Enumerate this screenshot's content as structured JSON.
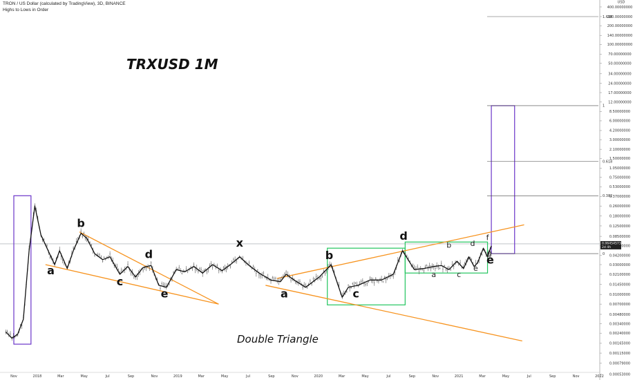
{
  "header": {
    "line1": "TRON / US Dollar (calculated by TradingView), 3D, BINANCE",
    "line2": "Highs to Lows in Order"
  },
  "annotations": {
    "title": "TRXUSD 1M",
    "note": "Double Triangle"
  },
  "chart_data": {
    "type": "line",
    "title": "TRXUSD 1M",
    "symbol": "TRON / US Dollar (calculated by TradingView), 3D, BINANCE",
    "scale": "log",
    "y_currency": "USD",
    "ylim": [
      0.0005,
      400
    ],
    "y_ticks": [
      "400.00000000",
      "280.00000000",
      "200.00000000",
      "140.00000000",
      "100.00000000",
      "70.00000000",
      "50.00000000",
      "34.00000000",
      "24.00000000",
      "17.00000000",
      "12.00000000",
      "8.50000000",
      "6.00000000",
      "4.20000000",
      "3.00000000",
      "2.10000000",
      "1.50000000",
      "1.05000000",
      "0.75000000",
      "0.53000000",
      "0.37000000",
      "0.26000000",
      "0.18000000",
      "0.12500000",
      "0.08500000",
      "0.06000000",
      "0.04200000",
      "0.03000000",
      "0.02100000",
      "0.01450000",
      "0.01000000",
      "0.00700000",
      "0.00480000",
      "0.00340000",
      "0.00240000",
      "0.00165000",
      "0.00115000",
      "0.00079000",
      "0.00053000",
      "0.00036000"
    ],
    "y_tick_values": [
      400,
      280,
      200,
      140,
      100,
      70,
      50,
      34,
      24,
      17,
      12,
      8.5,
      6,
      4.2,
      3,
      2.1,
      1.5,
      1.05,
      0.75,
      0.53,
      0.37,
      0.26,
      0.18,
      0.125,
      0.085,
      0.06,
      0.042,
      0.03,
      0.021,
      0.0145,
      0.01,
      0.007,
      0.0048,
      0.0034,
      0.0024,
      0.00165,
      0.00115,
      0.00079,
      0.00053,
      0.00036
    ],
    "x_ticks": [
      "Nov",
      "2018",
      "Mar",
      "May",
      "Jul",
      "Sep",
      "Nov",
      "2019",
      "Mar",
      "May",
      "Jul",
      "Sep",
      "Nov",
      "2020",
      "Mar",
      "May",
      "Jul",
      "Sep",
      "Nov",
      "2021",
      "Mar",
      "May",
      "Jul",
      "Sep",
      "Nov",
      "2022"
    ],
    "current_price": "0.06454573",
    "current_price_sub": "2d 4h",
    "fib_levels": [
      {
        "label": "1.618",
        "value": 280
      },
      {
        "label": "1",
        "value": 10.5
      },
      {
        "label": "0.618",
        "value": 1.35
      },
      {
        "label": "0.382",
        "value": 0.38
      },
      {
        "label": "0",
        "value": 0.045
      }
    ],
    "price_path": [
      [
        "2017-10-20",
        0.0025
      ],
      [
        "2017-11-05",
        0.002
      ],
      [
        "2017-11-20",
        0.0023
      ],
      [
        "2017-12-05",
        0.004
      ],
      [
        "2017-12-20",
        0.05
      ],
      [
        "2018-01-04",
        0.26
      ],
      [
        "2018-01-20",
        0.09
      ],
      [
        "2018-02-05",
        0.055
      ],
      [
        "2018-02-25",
        0.03
      ],
      [
        "2018-03-10",
        0.05
      ],
      [
        "2018-03-30",
        0.026
      ],
      [
        "2018-04-15",
        0.05
      ],
      [
        "2018-05-05",
        0.095
      ],
      [
        "2018-05-20",
        0.08
      ],
      [
        "2018-06-10",
        0.045
      ],
      [
        "2018-07-01",
        0.036
      ],
      [
        "2018-07-20",
        0.04
      ],
      [
        "2018-08-15",
        0.021
      ],
      [
        "2018-09-05",
        0.028
      ],
      [
        "2018-09-25",
        0.019
      ],
      [
        "2018-10-15",
        0.027
      ],
      [
        "2018-11-05",
        0.029
      ],
      [
        "2018-11-25",
        0.014
      ],
      [
        "2018-12-15",
        0.013
      ],
      [
        "2019-01-10",
        0.025
      ],
      [
        "2019-02-01",
        0.023
      ],
      [
        "2019-02-25",
        0.028
      ],
      [
        "2019-03-20",
        0.022
      ],
      [
        "2019-04-15",
        0.03
      ],
      [
        "2019-05-10",
        0.024
      ],
      [
        "2019-06-01",
        0.03
      ],
      [
        "2019-06-25",
        0.04
      ],
      [
        "2019-07-20",
        0.029
      ],
      [
        "2019-08-15",
        0.022
      ],
      [
        "2019-09-15",
        0.017
      ],
      [
        "2019-10-10",
        0.016
      ],
      [
        "2019-10-25",
        0.021
      ],
      [
        "2019-11-15",
        0.017
      ],
      [
        "2019-12-15",
        0.013
      ],
      [
        "2020-01-20",
        0.019
      ],
      [
        "2020-02-20",
        0.03
      ],
      [
        "2020-03-20",
        0.009
      ],
      [
        "2020-04-05",
        0.013
      ],
      [
        "2020-05-01",
        0.014
      ],
      [
        "2020-06-01",
        0.017
      ],
      [
        "2020-07-01",
        0.017
      ],
      [
        "2020-08-01",
        0.021
      ],
      [
        "2020-08-25",
        0.05
      ],
      [
        "2020-09-25",
        0.025
      ],
      [
        "2020-10-20",
        0.026
      ],
      [
        "2020-11-15",
        0.028
      ],
      [
        "2020-12-05",
        0.029
      ],
      [
        "2020-12-25",
        0.025
      ],
      [
        "2021-01-15",
        0.034
      ],
      [
        "2021-02-01",
        0.026
      ],
      [
        "2021-02-15",
        0.04
      ],
      [
        "2021-03-01",
        0.028
      ],
      [
        "2021-03-10",
        0.032
      ],
      [
        "2021-03-25",
        0.055
      ],
      [
        "2021-04-05",
        0.04
      ],
      [
        "2021-04-15",
        0.06
      ]
    ],
    "wave_labels": [
      {
        "text": "a",
        "date": "2018-02-15",
        "value": 0.021
      },
      {
        "text": "b",
        "date": "2018-05-05",
        "value": 0.12
      },
      {
        "text": "c",
        "date": "2018-08-15",
        "value": 0.014
      },
      {
        "text": "d",
        "date": "2018-10-30",
        "value": 0.038
      },
      {
        "text": "e",
        "date": "2018-12-10",
        "value": 0.009
      },
      {
        "text": "x",
        "date": "2019-06-25",
        "value": 0.058
      },
      {
        "text": "a",
        "date": "2019-10-20",
        "value": 0.009
      },
      {
        "text": "b",
        "date": "2020-02-15",
        "value": 0.037
      },
      {
        "text": "c",
        "date": "2020-04-25",
        "value": 0.009
      },
      {
        "text": "d",
        "date": "2020-08-28",
        "value": 0.075
      }
    ],
    "wave_labels_small": [
      {
        "text": "a",
        "date": "2020-11-15",
        "value": 0.019
      },
      {
        "text": "b",
        "date": "2020-12-25",
        "value": 0.056
      },
      {
        "text": "c",
        "date": "2021-01-20",
        "value": 0.019
      },
      {
        "text": "d",
        "date": "2021-02-25",
        "value": 0.06
      },
      {
        "text": "e",
        "date": "2021-03-05",
        "value": 0.024
      },
      {
        "text": "f",
        "date": "2021-04-05",
        "value": 0.074
      },
      {
        "text": "g",
        "date": "2021-04-10",
        "value": 0.042
      }
    ],
    "wave_label_e_final": {
      "text": "e",
      "date": "2021-04-12",
      "value": 0.031
    },
    "trendlines": [
      {
        "from": [
          "2018-05-01",
          0.1
        ],
        "to": [
          "2019-05-01",
          0.007
        ]
      },
      {
        "from": [
          "2018-02-01",
          0.03
        ],
        "to": [
          "2019-05-01",
          0.007
        ]
      },
      {
        "from": [
          "2019-10-01",
          0.018
        ],
        "to": [
          "2021-07-10",
          0.13
        ]
      },
      {
        "from": [
          "2019-09-01",
          0.014
        ],
        "to": [
          "2021-07-05",
          0.0018
        ]
      }
    ],
    "boxes": [
      {
        "color": "purple",
        "x0": "2017-11-10",
        "x1": "2017-12-25",
        "y0": 0.0016,
        "y1": 0.38
      },
      {
        "color": "green",
        "x0": "2020-02-10",
        "x1": "2020-09-01",
        "y0": 0.0068,
        "y1": 0.055
      },
      {
        "color": "green",
        "x0": "2020-09-01",
        "x1": "2021-04-05",
        "y0": 0.022,
        "y1": 0.069
      },
      {
        "color": "purple",
        "x0": "2021-04-15",
        "x1": "2021-06-15",
        "y0": 0.045,
        "y1": 10.5
      }
    ]
  }
}
